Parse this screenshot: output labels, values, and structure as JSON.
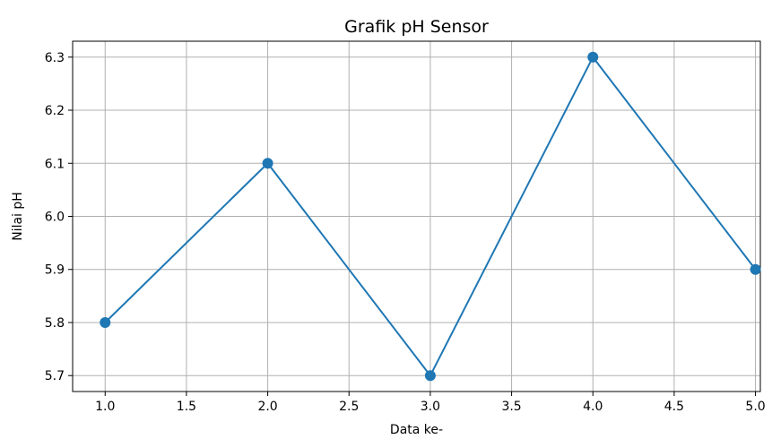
{
  "chart_data": {
    "type": "line",
    "title": "Grafik pH Sensor",
    "xlabel": "Data ke-",
    "ylabel": "Nilai pH",
    "x": [
      1,
      2,
      3,
      4,
      5
    ],
    "series": [
      {
        "values": [
          5.8,
          6.1,
          5.7,
          6.3,
          5.9
        ],
        "color": "#1f77b4",
        "marker": "circle"
      }
    ],
    "xticks": [
      "1.0",
      "1.5",
      "2.0",
      "2.5",
      "3.0",
      "3.5",
      "4.0",
      "4.5",
      "5.0"
    ],
    "yticks": [
      "5.7",
      "5.8",
      "5.9",
      "6.0",
      "6.1",
      "6.2",
      "6.3"
    ],
    "xlim": [
      0.8,
      5.03
    ],
    "ylim": [
      5.67,
      6.33
    ],
    "grid": true,
    "legend": "none"
  }
}
